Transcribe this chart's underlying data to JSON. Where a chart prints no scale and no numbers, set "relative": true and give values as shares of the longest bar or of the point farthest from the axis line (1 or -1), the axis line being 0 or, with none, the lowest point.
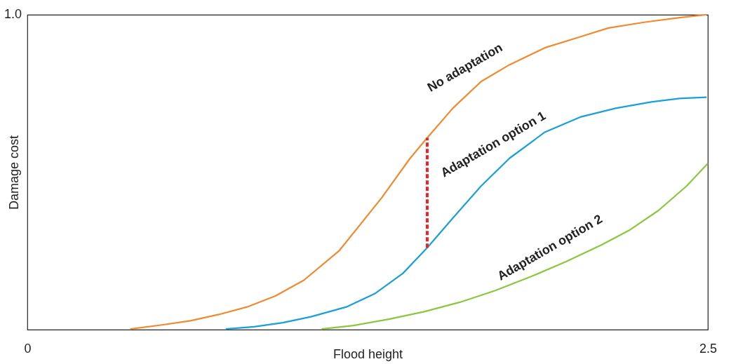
{
  "chart_data": {
    "type": "line",
    "xlabel": "Flood height",
    "ylabel": "Damage cost",
    "xlim": [
      0,
      2.5
    ],
    "xticks": [
      0,
      2.5
    ],
    "relative": true,
    "annotations": [
      "1.0"
    ],
    "marker": "none",
    "line_style": "solid",
    "series": [
      {
        "name": "No adaptation",
        "color": "#f08a30",
        "x": [
          0.378,
          0.495,
          0.599,
          0.703,
          0.807,
          0.911,
          1.016,
          1.146,
          1.302,
          1.406,
          1.469,
          1.563,
          1.667,
          1.771,
          1.901,
          2.031,
          2.135,
          2.266,
          2.396,
          2.495
        ],
        "values": [
          0.002,
          0.015,
          0.028,
          0.048,
          0.072,
          0.107,
          0.157,
          0.251,
          0.419,
          0.544,
          0.609,
          0.703,
          0.788,
          0.841,
          0.895,
          0.93,
          0.958,
          0.976,
          0.991,
          1.0
        ]
      },
      {
        "name": "Adaptation option 1",
        "color": "#1a9fd8",
        "x": [
          0.729,
          0.833,
          0.938,
          1.042,
          1.172,
          1.276,
          1.38,
          1.469,
          1.563,
          1.667,
          1.771,
          1.901,
          2.031,
          2.161,
          2.292,
          2.396,
          2.495
        ],
        "values": [
          0.002,
          0.009,
          0.022,
          0.041,
          0.072,
          0.114,
          0.179,
          0.26,
          0.354,
          0.456,
          0.544,
          0.627,
          0.675,
          0.703,
          0.723,
          0.734,
          0.738
        ]
      },
      {
        "name": "Adaptation option 2",
        "color": "#8cc63f",
        "x": [
          1.081,
          1.198,
          1.328,
          1.458,
          1.589,
          1.719,
          1.849,
          1.979,
          2.109,
          2.214,
          2.318,
          2.422,
          2.5
        ],
        "values": [
          0.002,
          0.013,
          0.033,
          0.057,
          0.087,
          0.124,
          0.168,
          0.216,
          0.269,
          0.317,
          0.378,
          0.456,
          0.528
        ]
      },
      {
        "color": "#e8262a",
        "line_style": "dashed",
        "x": [
          1.469,
          1.469
        ],
        "values": [
          0.26,
          0.609
        ]
      }
    ]
  }
}
